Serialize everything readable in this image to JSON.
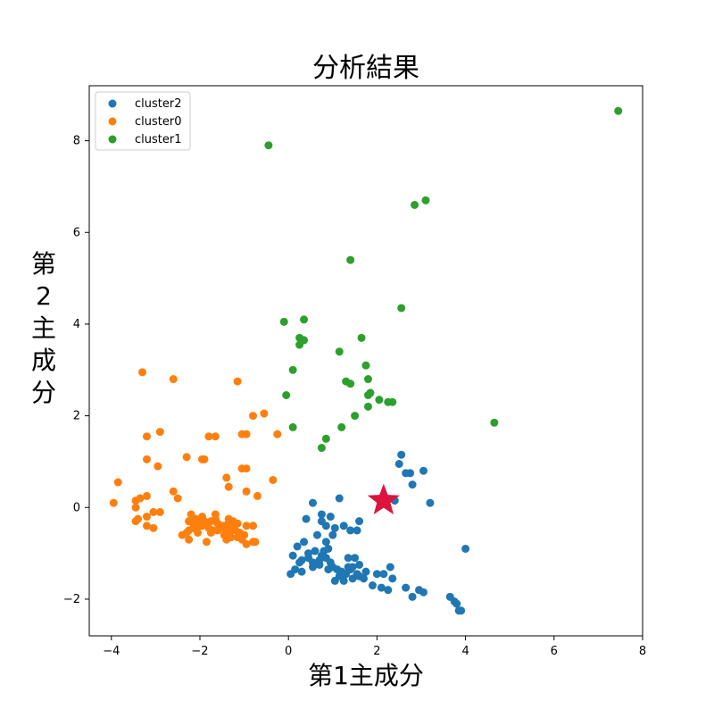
{
  "chart_data": {
    "type": "scatter",
    "title": "分析結果",
    "xlabel": "第1主成分",
    "ylabel": "第\n2\n主\n成\n分",
    "xlim": [
      -4.5,
      8.0
    ],
    "ylim": [
      -2.8,
      9.2
    ],
    "x_ticks": [
      -4,
      -2,
      0,
      2,
      4,
      6,
      8
    ],
    "y_ticks": [
      -2,
      0,
      2,
      4,
      6,
      8
    ],
    "legend_position": "top-left",
    "series": [
      {
        "name": "cluster2",
        "color": "#1f77b4",
        "points": [
          [
            0.55,
            0.1
          ],
          [
            0.75,
            -0.15
          ],
          [
            0.85,
            -0.4
          ],
          [
            0.95,
            -0.2
          ],
          [
            1.05,
            -0.45
          ],
          [
            1.15,
            0.2
          ],
          [
            1.25,
            -0.4
          ],
          [
            1.4,
            -0.5
          ],
          [
            1.55,
            -0.5
          ],
          [
            1.6,
            -0.3
          ],
          [
            0.4,
            -0.25
          ],
          [
            0.75,
            -0.3
          ],
          [
            0.65,
            -0.6
          ],
          [
            0.35,
            -0.75
          ],
          [
            0.2,
            -0.85
          ],
          [
            0.1,
            -1.05
          ],
          [
            0.25,
            -1.2
          ],
          [
            0.45,
            -1.1
          ],
          [
            0.55,
            -1.3
          ],
          [
            0.7,
            -1.25
          ],
          [
            0.8,
            -0.95
          ],
          [
            0.95,
            -1.2
          ],
          [
            1.1,
            -1.35
          ],
          [
            1.3,
            -1.45
          ],
          [
            1.45,
            -1.55
          ],
          [
            1.6,
            -1.5
          ],
          [
            1.75,
            -1.4
          ],
          [
            1.9,
            -1.7
          ],
          [
            2.1,
            -1.75
          ],
          [
            2.25,
            -1.8
          ],
          [
            2.35,
            -1.55
          ],
          [
            2.3,
            -1.3
          ],
          [
            2.15,
            -1.45
          ],
          [
            1.5,
            -1.1
          ],
          [
            1.35,
            -1.3
          ],
          [
            1.2,
            -1.45
          ],
          [
            1.05,
            -1.6
          ],
          [
            0.9,
            -1.35
          ],
          [
            0.75,
            -1.05
          ],
          [
            0.6,
            -0.95
          ],
          [
            0.45,
            -1.0
          ],
          [
            0.3,
            -1.15
          ],
          [
            0.15,
            -1.35
          ],
          [
            0.05,
            -1.45
          ],
          [
            0.3,
            -1.4
          ],
          [
            0.55,
            -1.2
          ],
          [
            0.85,
            -1.1
          ],
          [
            1.0,
            -1.3
          ],
          [
            1.15,
            -1.5
          ],
          [
            1.25,
            -1.6
          ],
          [
            1.4,
            -1.35
          ],
          [
            1.55,
            -1.45
          ],
          [
            1.7,
            -1.55
          ],
          [
            2.0,
            -1.45
          ],
          [
            2.65,
            -1.75
          ],
          [
            2.8,
            -1.95
          ],
          [
            2.95,
            -1.8
          ],
          [
            3.05,
            -1.85
          ],
          [
            3.65,
            -1.95
          ],
          [
            3.75,
            -2.05
          ],
          [
            3.8,
            -2.1
          ],
          [
            3.85,
            -2.25
          ],
          [
            3.9,
            -2.25
          ],
          [
            4.0,
            -0.9
          ],
          [
            3.2,
            0.1
          ],
          [
            3.05,
            0.8
          ],
          [
            2.8,
            0.5
          ],
          [
            2.75,
            0.75
          ],
          [
            2.65,
            0.75
          ],
          [
            2.55,
            1.15
          ],
          [
            2.5,
            0.95
          ],
          [
            2.4,
            0.15
          ],
          [
            1.0,
            -0.6
          ],
          [
            0.9,
            -0.9
          ],
          [
            1.35,
            -1.1
          ],
          [
            1.6,
            -1.25
          ],
          [
            0.7,
            -1.15
          ],
          [
            0.85,
            -0.75
          ],
          [
            1.2,
            -1.4
          ],
          [
            1.45,
            -1.3
          ]
        ]
      },
      {
        "name": "cluster0",
        "color": "#ff7f0e",
        "points": [
          [
            -3.3,
            2.95
          ],
          [
            -2.6,
            2.8
          ],
          [
            -1.15,
            2.75
          ],
          [
            -0.55,
            2.05
          ],
          [
            -0.8,
            2.0
          ],
          [
            -2.9,
            1.65
          ],
          [
            -3.2,
            1.55
          ],
          [
            -1.8,
            1.55
          ],
          [
            -1.65,
            1.55
          ],
          [
            -1.05,
            1.6
          ],
          [
            -0.95,
            1.6
          ],
          [
            -0.25,
            1.6
          ],
          [
            -3.2,
            1.05
          ],
          [
            -2.3,
            1.1
          ],
          [
            -1.95,
            1.05
          ],
          [
            -1.9,
            1.05
          ],
          [
            -2.95,
            0.9
          ],
          [
            -1.05,
            0.85
          ],
          [
            -0.95,
            0.85
          ],
          [
            -3.85,
            0.55
          ],
          [
            -1.4,
            0.65
          ],
          [
            -0.35,
            0.6
          ],
          [
            -1.35,
            0.45
          ],
          [
            -0.95,
            0.35
          ],
          [
            -0.7,
            0.25
          ],
          [
            -2.6,
            0.35
          ],
          [
            -2.5,
            0.2
          ],
          [
            -3.2,
            0.25
          ],
          [
            -3.45,
            0.15
          ],
          [
            -3.35,
            0.2
          ],
          [
            -3.45,
            0.0
          ],
          [
            -3.95,
            0.1
          ],
          [
            -3.05,
            -0.1
          ],
          [
            -2.9,
            -0.1
          ],
          [
            -3.2,
            -0.2
          ],
          [
            -2.2,
            -0.15
          ],
          [
            -2.1,
            -0.25
          ],
          [
            -2.25,
            -0.3
          ],
          [
            -2.05,
            -0.3
          ],
          [
            -1.85,
            -0.35
          ],
          [
            -1.9,
            -0.3
          ],
          [
            -1.75,
            -0.3
          ],
          [
            -1.65,
            -0.15
          ],
          [
            -1.65,
            -0.25
          ],
          [
            -1.35,
            -0.25
          ],
          [
            -1.25,
            -0.3
          ],
          [
            -1.15,
            -0.35
          ],
          [
            -0.95,
            -0.4
          ],
          [
            -0.8,
            -0.4
          ],
          [
            -3.45,
            -0.3
          ],
          [
            -3.4,
            -0.25
          ],
          [
            -3.2,
            -0.4
          ],
          [
            -3.05,
            -0.45
          ],
          [
            -2.25,
            -0.5
          ],
          [
            -2.15,
            -0.45
          ],
          [
            -2.0,
            -0.4
          ],
          [
            -1.95,
            -0.4
          ],
          [
            -1.8,
            -0.45
          ],
          [
            -1.7,
            -0.5
          ],
          [
            -1.6,
            -0.5
          ],
          [
            -1.5,
            -0.4
          ],
          [
            -1.45,
            -0.4
          ],
          [
            -1.4,
            -0.5
          ],
          [
            -1.35,
            -0.55
          ],
          [
            -1.3,
            -0.5
          ],
          [
            -1.2,
            -0.5
          ],
          [
            -1.1,
            -0.55
          ],
          [
            -1.0,
            -0.6
          ],
          [
            -2.3,
            -0.55
          ],
          [
            -2.4,
            -0.6
          ],
          [
            -2.25,
            -0.7
          ],
          [
            -1.85,
            -0.75
          ],
          [
            -1.75,
            -0.55
          ],
          [
            -1.55,
            -0.45
          ],
          [
            -1.4,
            -0.7
          ],
          [
            -1.3,
            -0.65
          ],
          [
            -1.15,
            -0.65
          ],
          [
            -1.05,
            -0.7
          ],
          [
            -0.95,
            -0.8
          ],
          [
            -0.8,
            -0.75
          ],
          [
            -0.75,
            -0.75
          ],
          [
            -1.35,
            -0.35
          ],
          [
            -1.25,
            -0.45
          ],
          [
            -1.6,
            -0.35
          ],
          [
            -2.05,
            -0.55
          ],
          [
            -1.95,
            -0.2
          ],
          [
            -1.45,
            -0.6
          ],
          [
            -2.15,
            -0.35
          ]
        ]
      },
      {
        "name": "cluster1",
        "color": "#2ca02c",
        "points": [
          [
            7.45,
            8.65
          ],
          [
            -0.45,
            7.9
          ],
          [
            3.1,
            6.7
          ],
          [
            2.85,
            6.6
          ],
          [
            1.4,
            5.4
          ],
          [
            2.55,
            4.35
          ],
          [
            -0.1,
            4.05
          ],
          [
            0.35,
            4.1
          ],
          [
            0.25,
            3.7
          ],
          [
            0.35,
            3.65
          ],
          [
            0.25,
            3.55
          ],
          [
            1.65,
            3.7
          ],
          [
            1.15,
            3.4
          ],
          [
            1.75,
            3.1
          ],
          [
            0.1,
            3.0
          ],
          [
            1.8,
            2.8
          ],
          [
            1.3,
            2.75
          ],
          [
            1.4,
            2.7
          ],
          [
            -0.05,
            2.45
          ],
          [
            1.85,
            2.5
          ],
          [
            1.8,
            2.45
          ],
          [
            2.05,
            2.35
          ],
          [
            2.25,
            2.3
          ],
          [
            2.35,
            2.3
          ],
          [
            1.8,
            2.2
          ],
          [
            1.5,
            2.0
          ],
          [
            0.1,
            1.75
          ],
          [
            1.2,
            1.75
          ],
          [
            0.85,
            1.5
          ],
          [
            0.75,
            1.3
          ],
          [
            4.65,
            1.85
          ]
        ]
      }
    ],
    "marker": {
      "type": "star",
      "x": 2.15,
      "y": 0.15,
      "color": "#dc143c"
    }
  }
}
